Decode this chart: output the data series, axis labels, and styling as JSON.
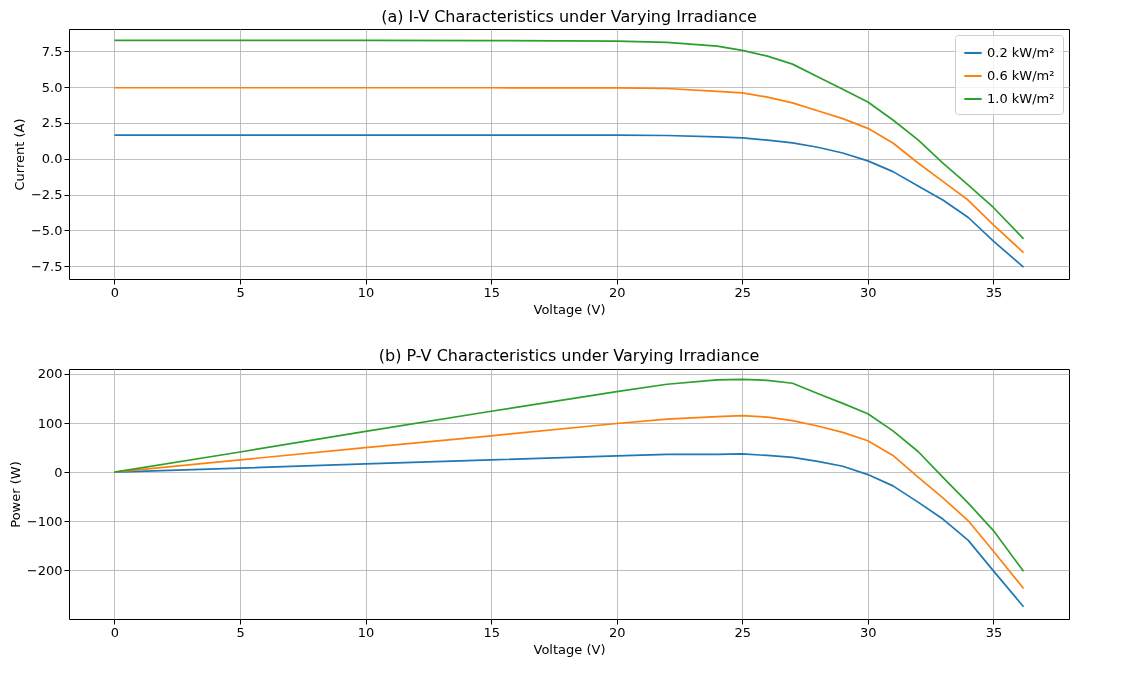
{
  "chart_data": [
    {
      "type": "line",
      "title": "(a) I-V Characteristics under Varying Irradiance",
      "xlabel": "Voltage (V)",
      "ylabel": "Current (A)",
      "x": [
        0,
        5,
        10,
        15,
        20,
        22,
        24,
        25,
        26,
        27,
        28,
        29,
        30,
        31,
        32,
        33,
        34,
        35,
        36.2
      ],
      "series": [
        {
          "name": "0.2 kW/m²",
          "color": "#1f77b4",
          "values": [
            1.65,
            1.65,
            1.65,
            1.65,
            1.64,
            1.62,
            1.52,
            1.46,
            1.3,
            1.1,
            0.8,
            0.4,
            -0.15,
            -0.9,
            -1.9,
            -2.9,
            -4.1,
            -5.75,
            -7.56
          ]
        },
        {
          "name": "0.6 kW/m²",
          "color": "#ff7f0e",
          "values": [
            4.95,
            4.95,
            4.95,
            4.95,
            4.94,
            4.9,
            4.7,
            4.59,
            4.3,
            3.9,
            3.35,
            2.8,
            2.12,
            1.1,
            -0.3,
            -1.6,
            -2.9,
            -4.61,
            -6.55
          ]
        },
        {
          "name": "1.0 kW/m²",
          "color": "#2ca02c",
          "values": [
            8.25,
            8.25,
            8.25,
            8.24,
            8.2,
            8.12,
            7.85,
            7.56,
            7.16,
            6.6,
            5.72,
            4.84,
            3.96,
            2.7,
            1.31,
            -0.33,
            -1.84,
            -3.4,
            -5.59
          ]
        }
      ],
      "xlim": [
        -1.81,
        38.01
      ],
      "xticks": [
        0,
        5,
        10,
        15,
        20,
        25,
        30,
        35
      ],
      "ylim": [
        -8.39,
        9.05
      ],
      "yticks": [
        {
          "value": -7.5,
          "label": "−7.5"
        },
        {
          "value": -5,
          "label": "−5.0"
        },
        {
          "value": -2.5,
          "label": "−2.5"
        },
        {
          "value": 0,
          "label": "0.0"
        },
        {
          "value": 2.5,
          "label": "2.5"
        },
        {
          "value": 5,
          "label": "5.0"
        },
        {
          "value": 7.5,
          "label": "7.5"
        }
      ],
      "grid": true,
      "legend": "top right"
    },
    {
      "type": "line",
      "title": "(b) P-V Characteristics under Varying Irradiance",
      "xlabel": "Voltage (V)",
      "ylabel": "Power (W)",
      "x": [
        0,
        5,
        10,
        15,
        20,
        22,
        24,
        25,
        26,
        27,
        28,
        29,
        30,
        31,
        32,
        33,
        34,
        35,
        36.2
      ],
      "series": [
        {
          "name": "0.2 kW/m²",
          "color": "#1f77b4",
          "values": [
            0,
            8,
            17,
            25,
            33,
            36,
            36,
            37,
            34,
            30,
            22,
            12,
            -5,
            -28,
            -61,
            -96,
            -139,
            -201,
            -274
          ]
        },
        {
          "name": "0.6 kW/m²",
          "color": "#ff7f0e",
          "values": [
            0,
            25,
            50,
            74,
            99,
            108,
            113,
            115,
            112,
            105,
            94,
            81,
            64,
            34,
            -10,
            -53,
            -99,
            -161,
            -237
          ]
        },
        {
          "name": "1.0 kW/m²",
          "color": "#2ca02c",
          "values": [
            0,
            41,
            83,
            124,
            164,
            179,
            188,
            189,
            187,
            181,
            160,
            140,
            119,
            84,
            42,
            -11,
            -63,
            -119,
            -202
          ]
        }
      ],
      "xlim": [
        -1.81,
        38.01
      ],
      "xticks": [
        0,
        5,
        10,
        15,
        20,
        25,
        30,
        35
      ],
      "ylim": [
        -299,
        210
      ],
      "yticks": [
        {
          "value": -200,
          "label": "−200"
        },
        {
          "value": -100,
          "label": "−100"
        },
        0,
        100,
        200
      ],
      "grid": true,
      "legend": "top right"
    }
  ]
}
